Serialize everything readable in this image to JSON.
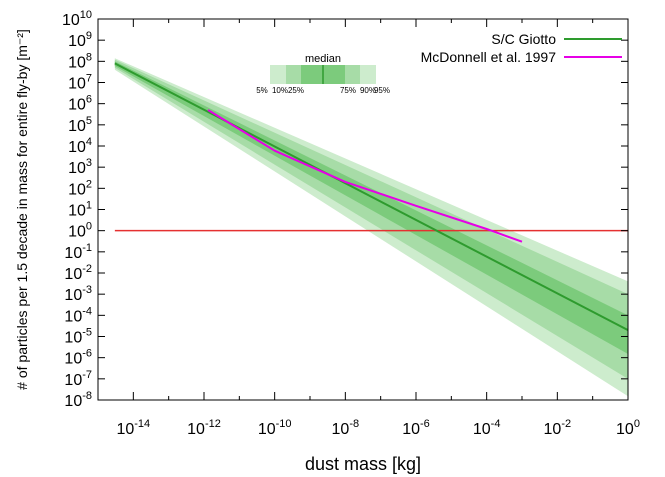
{
  "chart_data": {
    "type": "line",
    "xlabel": "dust mass [kg]",
    "ylabel": "# of particles per 1.5 decade in mass for entire fly-by [m⁻²]",
    "x_scale": "log",
    "y_scale": "log",
    "xlim": [
      1e-15,
      1
    ],
    "ylim": [
      1e-08,
      10000000000.0
    ],
    "grid": false,
    "legend_position": "top-right",
    "x_ticks": [
      {
        "base": "10",
        "exp": "-14",
        "value": 1e-14
      },
      {
        "base": "10",
        "exp": "-12",
        "value": 1e-12
      },
      {
        "base": "10",
        "exp": "-10",
        "value": 1e-10
      },
      {
        "base": "10",
        "exp": "-8",
        "value": 1e-08
      },
      {
        "base": "10",
        "exp": "-6",
        "value": 1e-06
      },
      {
        "base": "10",
        "exp": "-4",
        "value": 0.0001
      },
      {
        "base": "10",
        "exp": "-2",
        "value": 0.01
      },
      {
        "base": "10",
        "exp": "0",
        "value": 1
      }
    ],
    "y_ticks": [
      {
        "base": "10",
        "exp": "10",
        "value": 10000000000.0
      },
      {
        "base": "10",
        "exp": "9",
        "value": 1000000000.0
      },
      {
        "base": "10",
        "exp": "8",
        "value": 100000000.0
      },
      {
        "base": "10",
        "exp": "7",
        "value": 10000000.0
      },
      {
        "base": "10",
        "exp": "6",
        "value": 1000000.0
      },
      {
        "base": "10",
        "exp": "5",
        "value": 100000.0
      },
      {
        "base": "10",
        "exp": "4",
        "value": 10000.0
      },
      {
        "base": "10",
        "exp": "3",
        "value": 1000.0
      },
      {
        "base": "10",
        "exp": "2",
        "value": 100.0
      },
      {
        "base": "10",
        "exp": "1",
        "value": 10.0
      },
      {
        "base": "10",
        "exp": "0",
        "value": 1
      },
      {
        "base": "10",
        "exp": "-1",
        "value": 0.1
      },
      {
        "base": "10",
        "exp": "-2",
        "value": 0.01
      },
      {
        "base": "10",
        "exp": "-3",
        "value": 0.001
      },
      {
        "base": "10",
        "exp": "-4",
        "value": 0.0001
      },
      {
        "base": "10",
        "exp": "-5",
        "value": 1e-05
      },
      {
        "base": "10",
        "exp": "-6",
        "value": 1e-06
      },
      {
        "base": "10",
        "exp": "-7",
        "value": 1e-07
      },
      {
        "base": "10",
        "exp": "-8",
        "value": 1e-08
      }
    ],
    "series": [
      {
        "name": "S/C Giotto",
        "color": "#2e9b2e",
        "x": [
          3e-15,
          1
        ],
        "median": [
          80000000.0,
          2e-05
        ],
        "bands": [
          {
            "lower_label": "25%",
            "upper_label": "75%",
            "lower": [
              60000000.0,
              1.5e-06
            ],
            "upper": [
              100000000.0,
              0.0001
            ],
            "color": "#7ccb7c"
          },
          {
            "lower_label": "10%",
            "upper_label": "90%",
            "lower": [
              50000000.0,
              1e-07
            ],
            "upper": [
              120000000.0,
              0.001
            ],
            "color": "#a7dca7"
          },
          {
            "lower_label": "5%",
            "upper_label": "95%",
            "lower": [
              40000000.0,
              1.5e-08
            ],
            "upper": [
              140000000.0,
              0.004
            ],
            "color": "#cdeccd"
          }
        ]
      },
      {
        "name": "McDonnell et al. 1997",
        "color": "#e600e6",
        "x": [
          1.3e-12,
          1e-10,
          1e-08,
          1e-06,
          0.0001,
          0.001
        ],
        "y": [
          500000.0,
          6000.0,
          200.0,
          15.0,
          1.2,
          0.3
        ]
      }
    ],
    "reference_line": {
      "y": 1,
      "x": [
        3e-15,
        1
      ],
      "color": "#e53030"
    },
    "band_legend": {
      "title": "median",
      "labels": [
        "5%",
        "10%",
        "25%",
        "75%",
        "90%",
        "95%"
      ]
    }
  }
}
